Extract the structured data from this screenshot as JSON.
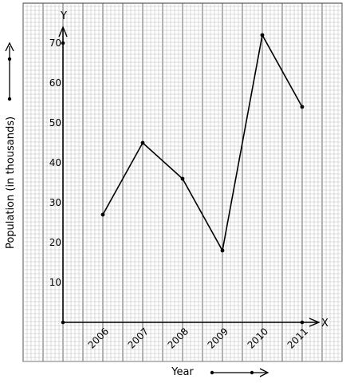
{
  "chart_data": {
    "type": "line",
    "x_axis_letter": "X",
    "y_axis_letter": "Y",
    "xlabel": "Year",
    "ylabel": "Population (in thousands)",
    "categories": [
      "2006",
      "2007",
      "2008",
      "2009",
      "2010",
      "2011"
    ],
    "y_ticks": [
      "10",
      "20",
      "30",
      "40",
      "50",
      "60",
      "70"
    ],
    "series": [
      {
        "values": [
          27,
          45,
          36,
          18,
          72,
          54
        ]
      }
    ],
    "ylim": [
      0,
      70
    ],
    "grid": true,
    "colors": {
      "line": "#000000",
      "grid_minor": "#bbbbbb",
      "grid_major": "#555555"
    }
  }
}
